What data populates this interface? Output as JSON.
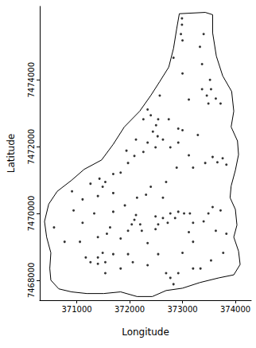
{
  "chart_data": {
    "type": "scatter",
    "x_label": "Longitude",
    "y_label": "Latitude",
    "xlim": [
      370300,
      374300
    ],
    "ylim": [
      7467400,
      7476200
    ],
    "xticks": [
      371000,
      372000,
      373000,
      374000
    ],
    "yticks": [
      7468000,
      7470000,
      7472000,
      7474000
    ],
    "grid": false,
    "color": "#000000",
    "marker": "circle",
    "x": [
      372990,
      372990,
      372970,
      373000,
      373400,
      373330,
      372830,
      373370,
      373000,
      373520,
      373370,
      373540,
      373460,
      373630,
      373720,
      373490,
      373120,
      372570,
      372340,
      372400,
      372260,
      372540,
      372500,
      372440,
      372530,
      372630,
      372770,
      372340,
      372120,
      372490,
      372260,
      372090,
      371940,
      371970,
      372920,
      372920,
      373120,
      373430,
      373200,
      372890,
      373290,
      373000,
      372740,
      373570,
      373660,
      373760,
      373830,
      371690,
      371830,
      371430,
      371540,
      371260,
      371490,
      371110,
      371400,
      371690,
      370910,
      370940,
      371330,
      371690,
      371910,
      372140,
      372400,
      372690,
      372630,
      372310,
      372120,
      372090,
      372040,
      372200,
      372230,
      371970,
      372490,
      372630,
      372720,
      372540,
      372490,
      372770,
      372920,
      373030,
      373140,
      372860,
      373200,
      373400,
      373490,
      373570,
      373720,
      373120,
      373630,
      373830,
      373200,
      370570,
      370770,
      371060,
      371400,
      371570,
      371170,
      371260,
      371400,
      371490,
      371540,
      371400,
      371540,
      371690,
      371970,
      371830,
      372060,
      372340,
      372540,
      372690,
      372770,
      372830,
      372920,
      373200,
      373340,
      373540,
      373770,
      373000,
      372340,
      371830,
      371110,
      371630
    ],
    "y": [
      7475840,
      7475650,
      7475370,
      7475180,
      7475370,
      7474990,
      7474660,
      7474470,
      7474190,
      7474000,
      7473720,
      7473720,
      7473530,
      7473440,
      7473290,
      7473290,
      7473410,
      7473530,
      7473110,
      7472940,
      7472820,
      7472820,
      7472640,
      7472450,
      7472310,
      7472210,
      7471980,
      7472120,
      7472210,
      7471980,
      7471840,
      7471720,
      7471880,
      7471510,
      7472540,
      7472120,
      7471740,
      7471510,
      7471370,
      7471370,
      7472350,
      7472490,
      7472820,
      7471690,
      7471530,
      7471650,
      7471460,
      7471180,
      7471220,
      7471040,
      7470940,
      7470890,
      7470800,
      7470420,
      7470520,
      7470610,
      7470660,
      7470090,
      7470000,
      7470050,
      7470240,
      7470470,
      7470800,
      7470940,
      7470470,
      7470560,
      7469950,
      7469810,
      7469670,
      7469670,
      7469480,
      7469480,
      7469910,
      7469860,
      7469720,
      7469670,
      7469530,
      7470000,
      7470050,
      7470000,
      7470000,
      7469860,
      7469720,
      7469760,
      7470000,
      7470190,
      7470090,
      7469440,
      7469480,
      7469390,
      7469150,
      7469580,
      7469150,
      7469150,
      7469290,
      7469390,
      7468680,
      7468540,
      7468680,
      7468820,
      7468540,
      7468490,
      7468210,
      7468780,
      7468780,
      7468350,
      7468540,
      7468450,
      7468780,
      7468210,
      7468070,
      7467880,
      7468210,
      7468350,
      7468350,
      7468590,
      7468820,
      7468820,
      7469110,
      7469250,
      7469720,
      7469580
    ],
    "boundary": {
      "color": "#000000",
      "x": [
        372940,
        373430,
        373570,
        373570,
        373640,
        373760,
        373930,
        373970,
        373920,
        374040,
        374060,
        374000,
        373920,
        373900,
        374000,
        374030,
        373970,
        374060,
        374090,
        373970,
        373690,
        373330,
        373000,
        372690,
        372430,
        372140,
        371830,
        371510,
        371190,
        370900,
        370660,
        370510,
        370490,
        370510,
        370430,
        370390,
        370470,
        370630,
        370900,
        371140,
        371470,
        371690,
        371900,
        372190,
        372400,
        372570,
        372740,
        372830,
        372890
      ],
      "y": [
        7475980,
        7476020,
        7475950,
        7475410,
        7474710,
        7474120,
        7473650,
        7473060,
        7472590,
        7472170,
        7471760,
        7471290,
        7470820,
        7470470,
        7470120,
        7469650,
        7469290,
        7468870,
        7468470,
        7468160,
        7468070,
        7467930,
        7467760,
        7467690,
        7467510,
        7467510,
        7467650,
        7467600,
        7467600,
        7467650,
        7467740,
        7468000,
        7468350,
        7468820,
        7469290,
        7469760,
        7470280,
        7470660,
        7470990,
        7471320,
        7471600,
        7472070,
        7472590,
        7473060,
        7473530,
        7473950,
        7474380,
        7474940,
        7475530
      ]
    }
  }
}
